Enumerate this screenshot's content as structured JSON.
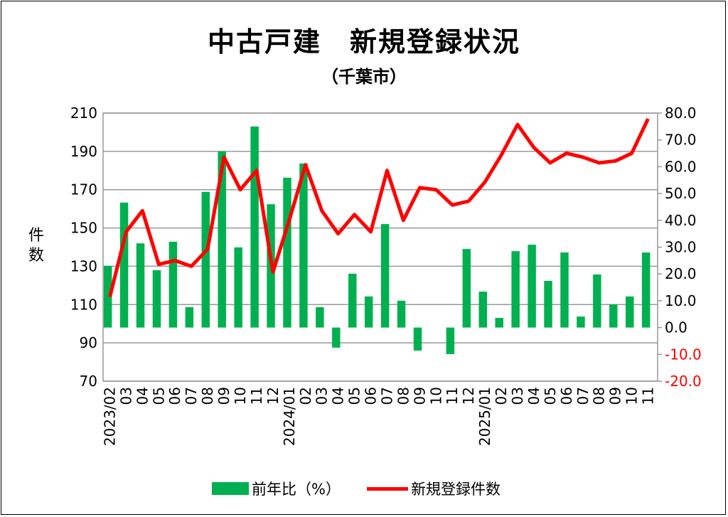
{
  "chart_data": {
    "type": "bar+line",
    "title": "中古戸建　新規登録状況",
    "subtitle": "（千葉市）",
    "ylabel": "件数",
    "categories": [
      "2023/02",
      "03",
      "04",
      "05",
      "06",
      "07",
      "08",
      "09",
      "10",
      "11",
      "12",
      "2024/01",
      "02",
      "03",
      "04",
      "05",
      "06",
      "07",
      "08",
      "09",
      "10",
      "11",
      "12",
      "2025/01",
      "02",
      "03",
      "04",
      "05",
      "06",
      "07",
      "08",
      "09",
      "10",
      "11"
    ],
    "series": [
      {
        "name": "前年比（%）",
        "type": "bar",
        "axis": "right",
        "color": "#00b050",
        "values": [
          23.0,
          46.6,
          31.4,
          21.4,
          32.0,
          7.6,
          50.6,
          65.7,
          29.9,
          75.0,
          46.0,
          55.9,
          61.2,
          7.6,
          -7.5,
          20.1,
          11.6,
          38.6,
          10.0,
          -8.6,
          0.0,
          -9.9,
          29.3,
          13.4,
          3.6,
          28.5,
          30.9,
          17.4,
          28.0,
          4.1,
          19.8,
          8.6,
          11.6,
          28.0
        ]
      },
      {
        "name": "新規登録件数",
        "type": "line",
        "axis": "left",
        "color": "#ff0000",
        "values": [
          114,
          148,
          159,
          131,
          133,
          130,
          139,
          187,
          170,
          180,
          127,
          154,
          183,
          159,
          147,
          157,
          148,
          180,
          154,
          171,
          170,
          162,
          164,
          174,
          188,
          204,
          192,
          184,
          189,
          187,
          184,
          185,
          189,
          207
        ]
      }
    ],
    "left_axis": {
      "ylim": [
        70,
        210
      ],
      "ticks": [
        "70",
        "90",
        "110",
        "130",
        "150",
        "170",
        "190",
        "210"
      ]
    },
    "right_axis": {
      "ylim": [
        -20,
        80
      ],
      "ticks": [
        "-20.0",
        "-10.0",
        "0.0",
        "10.0",
        "20.0",
        "30.0",
        "40.0",
        "50.0",
        "60.0",
        "70.0",
        "80.0"
      ],
      "negative_color": "#ff0000"
    },
    "grid": true,
    "legend": "bottom"
  }
}
